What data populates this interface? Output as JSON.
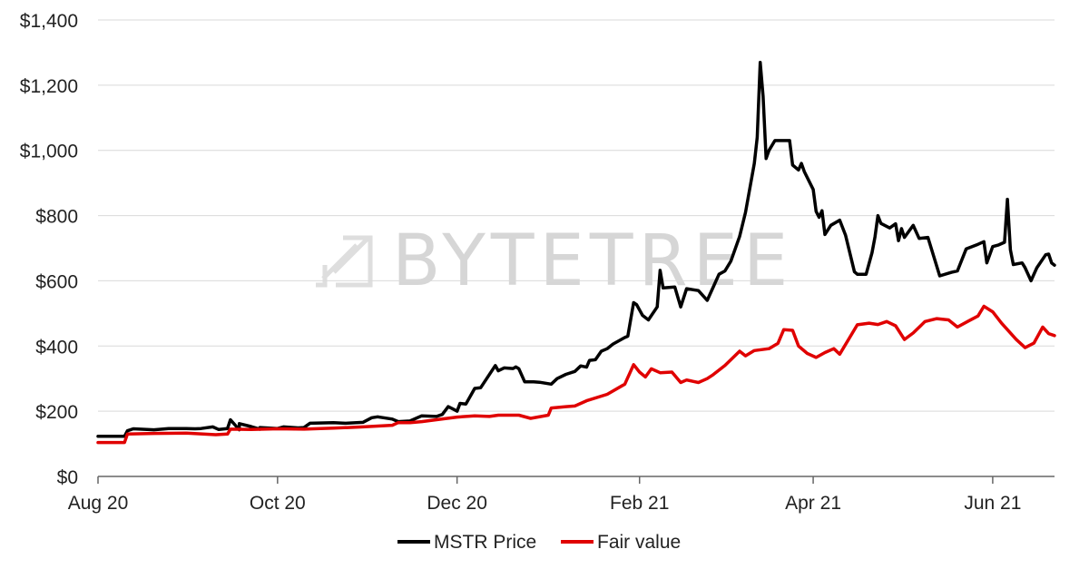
{
  "watermark": {
    "text": "BYTETREE",
    "icon": "bytetree-logo-icon"
  },
  "chart_data": {
    "type": "line",
    "title": "",
    "xlabel": "",
    "ylabel": "",
    "ylim": [
      0,
      1400
    ],
    "y_ticks": [
      0,
      200,
      400,
      600,
      800,
      1000,
      1200,
      1400
    ],
    "y_tick_labels": [
      "$0",
      "$200",
      "$400",
      "$600",
      "$800",
      "$1,000",
      "$1,200",
      "$1,400"
    ],
    "x_ticks": [
      "2020-08-01",
      "2020-10-01",
      "2020-12-01",
      "2021-02-01",
      "2021-04-01",
      "2021-06-01"
    ],
    "x_tick_labels": [
      "Aug 20",
      "Oct 20",
      "Dec 20",
      "Feb 21",
      "Apr 21",
      "Jun 21"
    ],
    "xlim": [
      "2020-08-01",
      "2021-06-22"
    ],
    "grid": "horizontal",
    "legend_position": "bottom",
    "series": [
      {
        "name": "MSTR Price",
        "color": "#000000",
        "points": [
          [
            "2020-08-01",
            123
          ],
          [
            "2020-08-10",
            123
          ],
          [
            "2020-08-11",
            140
          ],
          [
            "2020-08-13",
            146
          ],
          [
            "2020-08-20",
            143
          ],
          [
            "2020-08-25",
            147
          ],
          [
            "2020-08-31",
            147
          ],
          [
            "2020-09-05",
            147
          ],
          [
            "2020-09-09",
            152
          ],
          [
            "2020-09-11",
            144
          ],
          [
            "2020-09-18",
            143
          ],
          [
            "2020-09-25",
            145
          ],
          [
            "2020-09-03",
            146
          ],
          [
            "2020-09-14",
            147
          ],
          [
            "2020-09-15",
            174
          ],
          [
            "2020-09-18",
            162
          ],
          [
            "2020-09-22",
            153
          ],
          [
            "2020-09-25",
            150
          ],
          [
            "2020-10-01",
            147
          ],
          [
            "2020-10-03",
            152
          ],
          [
            "2020-10-08",
            149
          ],
          [
            "2020-10-10",
            150
          ],
          [
            "2020-10-12",
            163
          ],
          [
            "2020-10-20",
            165
          ],
          [
            "2020-10-24",
            163
          ],
          [
            "2020-10-30",
            166
          ],
          [
            "2020-11-02",
            180
          ],
          [
            "2020-11-04",
            183
          ],
          [
            "2020-11-09",
            176
          ],
          [
            "2020-11-11",
            168
          ],
          [
            "2020-11-15",
            170
          ],
          [
            "2020-11-19",
            186
          ],
          [
            "2020-11-24",
            184
          ],
          [
            "2020-11-26",
            190
          ],
          [
            "2020-12-01",
            200
          ],
          [
            "2020-11-30",
            205
          ],
          [
            "2020-11-28",
            214
          ],
          [
            "2020-12-02",
            224
          ],
          [
            "2020-12-04",
            222
          ],
          [
            "2020-12-07",
            270
          ],
          [
            "2020-12-09",
            272
          ],
          [
            "2020-12-14",
            340
          ],
          [
            "2020-12-15",
            324
          ],
          [
            "2020-12-17",
            333
          ],
          [
            "2020-12-20",
            331
          ],
          [
            "2020-12-21",
            336
          ],
          [
            "2020-12-22",
            330
          ],
          [
            "2020-12-24",
            290
          ],
          [
            "2020-12-27",
            290
          ],
          [
            "2020-12-29",
            289
          ],
          [
            "2021-01-02",
            283
          ],
          [
            "2021-01-04",
            300
          ],
          [
            "2021-01-07",
            313
          ],
          [
            "2021-01-10",
            322
          ],
          [
            "2021-01-12",
            339
          ],
          [
            "2021-01-14",
            335
          ],
          [
            "2021-01-15",
            356
          ],
          [
            "2021-01-17",
            358
          ],
          [
            "2021-01-19",
            384
          ],
          [
            "2021-01-21",
            392
          ],
          [
            "2021-01-23",
            406
          ],
          [
            "2021-01-27",
            426
          ],
          [
            "2021-01-28",
            430
          ],
          [
            "2021-01-30",
            533
          ],
          [
            "2021-01-31",
            527
          ],
          [
            "2021-02-02",
            494
          ],
          [
            "2021-02-04",
            480
          ],
          [
            "2021-02-07",
            520
          ],
          [
            "2021-02-08",
            632
          ],
          [
            "2021-02-09",
            578
          ],
          [
            "2021-02-13",
            581
          ],
          [
            "2021-02-15",
            520
          ],
          [
            "2021-02-17",
            576
          ],
          [
            "2021-02-21",
            570
          ],
          [
            "2021-02-24",
            540
          ],
          [
            "2021-02-26",
            580
          ],
          [
            "2021-02-28",
            620
          ],
          [
            "2021-03-02",
            630
          ],
          [
            "2021-03-04",
            660
          ],
          [
            "2021-03-07",
            736
          ],
          [
            "2021-03-09",
            810
          ],
          [
            "2021-03-12",
            960
          ],
          [
            "2021-03-13",
            1040
          ],
          [
            "2021-03-14",
            1270
          ],
          [
            "2021-03-15",
            1165
          ],
          [
            "2021-03-16",
            975
          ],
          [
            "2021-03-17",
            1000
          ],
          [
            "2021-03-19",
            1030
          ],
          [
            "2021-03-24",
            1030
          ],
          [
            "2021-03-25",
            955
          ],
          [
            "2021-03-27",
            940
          ],
          [
            "2021-03-28",
            960
          ],
          [
            "2021-03-29",
            935
          ],
          [
            "2021-04-01",
            880
          ],
          [
            "2021-04-02",
            813
          ],
          [
            "2021-04-03",
            795
          ],
          [
            "2021-04-04",
            815
          ],
          [
            "2021-04-05",
            742
          ],
          [
            "2021-04-07",
            770
          ],
          [
            "2021-04-10",
            786
          ],
          [
            "2021-04-12",
            740
          ],
          [
            "2021-04-15",
            628
          ],
          [
            "2021-04-16",
            620
          ],
          [
            "2021-04-19",
            620
          ],
          [
            "2021-04-21",
            686
          ],
          [
            "2021-04-22",
            735
          ],
          [
            "2021-04-23",
            800
          ],
          [
            "2021-04-24",
            776
          ],
          [
            "2021-04-27",
            762
          ],
          [
            "2021-04-29",
            775
          ],
          [
            "2021-04-30",
            723
          ],
          [
            "2021-05-01",
            760
          ],
          [
            "2021-05-02",
            733
          ],
          [
            "2021-05-05",
            770
          ],
          [
            "2021-05-07",
            730
          ],
          [
            "2021-05-10",
            733
          ],
          [
            "2021-05-14",
            615
          ],
          [
            "2021-05-18",
            626
          ],
          [
            "2021-05-20",
            630
          ],
          [
            "2021-05-23",
            698
          ],
          [
            "2021-05-25",
            705
          ],
          [
            "2021-05-27",
            712
          ],
          [
            "2021-05-29",
            720
          ],
          [
            "2021-05-30",
            655
          ],
          [
            "2021-06-01",
            705
          ],
          [
            "2021-06-03",
            710
          ],
          [
            "2021-06-05",
            718
          ],
          [
            "2021-06-06",
            850
          ],
          [
            "2021-06-07",
            695
          ],
          [
            "2021-06-08",
            650
          ],
          [
            "2021-06-11",
            655
          ],
          [
            "2021-06-12",
            640
          ],
          [
            "2021-06-14",
            600
          ],
          [
            "2021-06-16",
            640
          ],
          [
            "2021-06-19",
            680
          ],
          [
            "2021-06-20",
            682
          ],
          [
            "2021-06-21",
            655
          ],
          [
            "2021-06-22",
            648
          ]
        ]
      },
      {
        "name": "Fair value",
        "color": "#e00000",
        "points": [
          [
            "2020-08-01",
            104
          ],
          [
            "2020-08-10",
            104
          ],
          [
            "2020-08-11",
            130
          ],
          [
            "2020-08-20",
            132
          ],
          [
            "2020-08-31",
            133
          ],
          [
            "2020-09-10",
            128
          ],
          [
            "2020-09-14",
            130
          ],
          [
            "2020-09-15",
            145
          ],
          [
            "2020-09-22",
            144
          ],
          [
            "2020-10-01",
            146
          ],
          [
            "2020-10-10",
            145
          ],
          [
            "2020-10-20",
            148
          ],
          [
            "2020-10-30",
            152
          ],
          [
            "2020-11-09",
            157
          ],
          [
            "2020-11-11",
            165
          ],
          [
            "2020-11-15",
            165
          ],
          [
            "2020-11-19",
            168
          ],
          [
            "2020-11-24",
            174
          ],
          [
            "2020-12-01",
            182
          ],
          [
            "2020-12-07",
            186
          ],
          [
            "2020-12-12",
            184
          ],
          [
            "2020-12-15",
            188
          ],
          [
            "2020-12-22",
            188
          ],
          [
            "2020-12-26",
            178
          ],
          [
            "2021-01-01",
            188
          ],
          [
            "2021-01-02",
            210
          ],
          [
            "2021-01-07",
            214
          ],
          [
            "2021-01-10",
            216
          ],
          [
            "2021-01-14",
            232
          ],
          [
            "2021-01-21",
            252
          ],
          [
            "2021-01-27",
            283
          ],
          [
            "2021-01-30",
            343
          ],
          [
            "2021-02-01",
            320
          ],
          [
            "2021-02-03",
            305
          ],
          [
            "2021-02-05",
            330
          ],
          [
            "2021-02-08",
            318
          ],
          [
            "2021-02-12",
            320
          ],
          [
            "2021-02-15",
            288
          ],
          [
            "2021-02-17",
            296
          ],
          [
            "2021-02-21",
            288
          ],
          [
            "2021-02-24",
            300
          ],
          [
            "2021-02-26",
            312
          ],
          [
            "2021-03-02",
            340
          ],
          [
            "2021-03-07",
            384
          ],
          [
            "2021-03-09",
            370
          ],
          [
            "2021-03-12",
            386
          ],
          [
            "2021-03-17",
            392
          ],
          [
            "2021-03-20",
            408
          ],
          [
            "2021-03-22",
            450
          ],
          [
            "2021-03-25",
            448
          ],
          [
            "2021-03-27",
            400
          ],
          [
            "2021-03-30",
            377
          ],
          [
            "2021-04-02",
            365
          ],
          [
            "2021-04-05",
            380
          ],
          [
            "2021-04-08",
            392
          ],
          [
            "2021-04-10",
            375
          ],
          [
            "2021-04-13",
            420
          ],
          [
            "2021-04-16",
            465
          ],
          [
            "2021-04-20",
            470
          ],
          [
            "2021-04-23",
            466
          ],
          [
            "2021-04-26",
            475
          ],
          [
            "2021-04-29",
            462
          ],
          [
            "2021-05-02",
            420
          ],
          [
            "2021-05-05",
            440
          ],
          [
            "2021-05-09",
            475
          ],
          [
            "2021-05-13",
            484
          ],
          [
            "2021-05-17",
            480
          ],
          [
            "2021-05-20",
            458
          ],
          [
            "2021-05-24",
            478
          ],
          [
            "2021-05-27",
            492
          ],
          [
            "2021-05-29",
            522
          ],
          [
            "2021-06-01",
            505
          ],
          [
            "2021-06-04",
            470
          ],
          [
            "2021-06-07",
            440
          ],
          [
            "2021-06-09",
            420
          ],
          [
            "2021-06-12",
            395
          ],
          [
            "2021-06-15",
            409
          ],
          [
            "2021-06-18",
            458
          ],
          [
            "2021-06-20",
            438
          ],
          [
            "2021-06-22",
            432
          ]
        ]
      }
    ]
  },
  "legend": [
    {
      "label": "MSTR Price",
      "color": "#000000"
    },
    {
      "label": "Fair value",
      "color": "#e00000"
    }
  ]
}
